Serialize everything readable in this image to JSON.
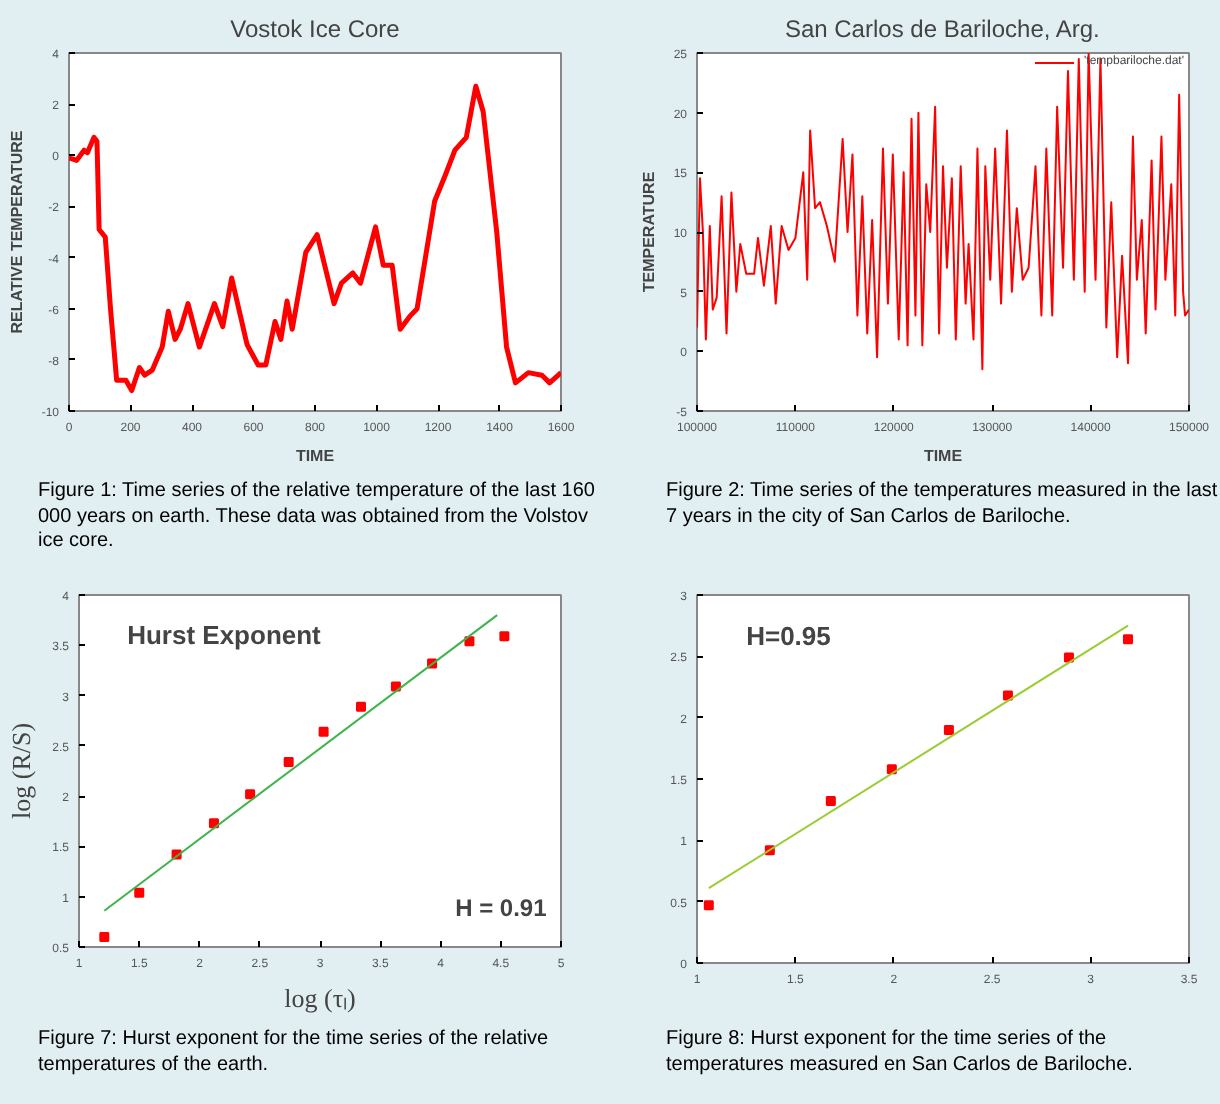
{
  "chart_data": [
    {
      "type": "line",
      "title": "Vostok Ice Core",
      "xlabel": "TIME",
      "ylabel": "RELATIVE TEMPERATURE",
      "xlim": [
        0,
        1600
      ],
      "ylim": [
        -10,
        4
      ],
      "xticks": [
        0,
        200,
        400,
        600,
        800,
        1000,
        1200,
        1400,
        1600
      ],
      "yticks": [
        -10,
        -8,
        -6,
        -4,
        -2,
        0,
        2,
        4
      ],
      "grid": false,
      "legend": false,
      "series": [
        {
          "color": "#ff0000",
          "x": [
            0,
            25,
            49,
            60,
            81,
            91,
            98,
            118,
            135,
            155,
            185,
            204,
            229,
            246,
            271,
            303,
            323,
            345,
            362,
            387,
            424,
            473,
            500,
            529,
            579,
            615,
            640,
            670,
            689,
            709,
            726,
            770,
            807,
            862,
            886,
            923,
            948,
            997,
            1022,
            1051,
            1077,
            1108,
            1132,
            1189,
            1223,
            1255,
            1292,
            1323,
            1347,
            1391,
            1423,
            1452,
            1494,
            1538,
            1563,
            1600
          ],
          "values": [
            -0.1,
            -0.2,
            0.2,
            0.1,
            0.7,
            0.55,
            -2.9,
            -3.2,
            -6,
            -8.8,
            -8.8,
            -9.2,
            -8.3,
            -8.6,
            -8.4,
            -7.5,
            -6.1,
            -7.2,
            -6.8,
            -5.8,
            -7.5,
            -5.8,
            -6.7,
            -4.8,
            -7.4,
            -8.2,
            -8.2,
            -6.5,
            -7.2,
            -5.7,
            -6.8,
            -3.8,
            -3.1,
            -5.8,
            -5,
            -4.6,
            -5,
            -2.8,
            -4.3,
            -4.3,
            -6.8,
            -6.3,
            -6,
            -1.8,
            -0.8,
            0.2,
            0.7,
            2.7,
            1.7,
            -3,
            -7.5,
            -8.9,
            -8.5,
            -8.6,
            -8.9,
            -8.5
          ]
        }
      ],
      "annotations": [
        "Figure 1: Time series of the relative temperature of the last 160 000 years on earth. These data was obtained from the Volstov ice core."
      ]
    },
    {
      "type": "line",
      "title": "San Carlos de Bariloche, Arg.",
      "xlabel": "TIME",
      "ylabel": "TEMPERATURE",
      "xlim": [
        100000,
        150000
      ],
      "ylim": [
        -5,
        25
      ],
      "xticks": [
        100000,
        110000,
        120000,
        130000,
        140000,
        150000
      ],
      "yticks": [
        -5,
        0,
        5,
        10,
        15,
        20,
        25
      ],
      "grid": false,
      "legend": "top right",
      "series": [
        {
          "name": "'tempbariloche.dat'",
          "color": "#ff0000",
          "x": [
            100000,
            100300,
            100600,
            100900,
            101300,
            101600,
            102000,
            102500,
            103000,
            103500,
            104000,
            104400,
            105000,
            105800,
            106200,
            106800,
            107500,
            108000,
            108600,
            109300,
            110000,
            110800,
            111200,
            111500,
            112000,
            112500,
            113200,
            114000,
            114800,
            115300,
            115800,
            116300,
            116800,
            117300,
            117800,
            118300,
            118900,
            119400,
            119900,
            120500,
            121000,
            121400,
            121800,
            122200,
            122500,
            122900,
            123300,
            123700,
            124200,
            124600,
            125000,
            125400,
            125900,
            126300,
            126800,
            127300,
            127600,
            128100,
            128500,
            129000,
            129300,
            129800,
            130300,
            130900,
            131500,
            132000,
            132500,
            133100,
            133700,
            134400,
            135000,
            135500,
            136100,
            136600,
            137200,
            137700,
            138300,
            138800,
            139400,
            139800,
            140500,
            141000,
            141600,
            142100,
            142700,
            143200,
            143800,
            144300,
            144700,
            145200,
            145600,
            146200,
            146600,
            147200,
            147600,
            148200,
            148600,
            149000,
            149400,
            149600,
            150000
          ],
          "values": [
            2,
            14.5,
            10,
            1,
            10.5,
            3.5,
            4.5,
            13,
            1.5,
            13.3,
            5,
            9,
            6.5,
            6.5,
            9.5,
            5.5,
            10.5,
            4,
            10.5,
            8.5,
            9.5,
            15,
            6,
            18.5,
            12,
            12.5,
            10.5,
            7.5,
            17.8,
            10,
            16.5,
            3,
            13,
            1.5,
            11,
            -0.5,
            17,
            4,
            16.5,
            1,
            15,
            0.5,
            19.5,
            3,
            20,
            0.5,
            14,
            10,
            20.5,
            1.5,
            15.5,
            7,
            14.5,
            1,
            15.5,
            4,
            9,
            1,
            17,
            -1.5,
            15.5,
            6,
            17,
            4,
            18.5,
            5,
            12,
            6,
            7,
            15.5,
            3,
            17,
            3,
            20.5,
            7,
            23.5,
            6,
            24.5,
            5,
            25,
            6,
            24.5,
            2,
            12.5,
            -0.5,
            8,
            -1,
            18,
            6,
            11,
            1.5,
            16,
            3.5,
            18,
            6,
            14,
            3,
            21.5,
            5,
            3,
            3.5
          ]
        }
      ],
      "annotations": [
        "Figure 2: Time series of the temperatures measured in the last 7 years in the city of San Carlos de Bariloche."
      ]
    },
    {
      "type": "scatter",
      "xlabel": "log (τₗ)",
      "ylabel": "log (R/S)",
      "xlim": [
        1,
        5
      ],
      "ylim": [
        0.5,
        4
      ],
      "xticks": [
        1,
        1.5,
        2,
        2.5,
        3,
        3.5,
        4,
        4.5,
        5
      ],
      "yticks": [
        0.5,
        1,
        1.5,
        2,
        2.5,
        3,
        3.5,
        4
      ],
      "grid": false,
      "legend": false,
      "series": [
        {
          "color": "#ff0000",
          "marker": "square",
          "x": [
            1.21,
            1.5,
            1.81,
            2.12,
            2.42,
            2.74,
            3.03,
            3.34,
            3.63,
            3.93,
            4.24,
            4.53
          ],
          "values": [
            0.6,
            1.04,
            1.42,
            1.73,
            2.02,
            2.34,
            2.64,
            2.89,
            3.09,
            3.32,
            3.54,
            3.59
          ]
        },
        {
          "type": "line",
          "color": "#3cb44b",
          "x": [
            1.21,
            4.47
          ],
          "values": [
            0.86,
            3.8
          ]
        }
      ],
      "annotations": [
        "Hurst Exponent",
        "H = 0.91",
        "Figure 7: Hurst exponent for the time series of the relative temperatures of the earth."
      ]
    },
    {
      "type": "scatter",
      "xlim": [
        1,
        3.5
      ],
      "ylim": [
        0,
        3
      ],
      "xticks": [
        1,
        1.5,
        2,
        2.5,
        3,
        3.5
      ],
      "yticks": [
        0,
        0.5,
        1,
        1.5,
        2,
        2.5,
        3
      ],
      "grid": false,
      "legend": false,
      "series": [
        {
          "color": "#ff0000",
          "marker": "square",
          "x": [
            1.06,
            1.37,
            1.68,
            1.99,
            2.28,
            2.58,
            2.89,
            3.19
          ],
          "values": [
            0.47,
            0.92,
            1.32,
            1.58,
            1.9,
            2.18,
            2.49,
            2.64
          ]
        },
        {
          "type": "line",
          "color": "#9acd32",
          "x": [
            1.06,
            3.19
          ],
          "values": [
            0.61,
            2.75
          ]
        }
      ],
      "annotations": [
        "H=0.95",
        "Figure 8: Hurst exponent for the time series of the temperatures measured en San Carlos de Bariloche."
      ]
    }
  ]
}
